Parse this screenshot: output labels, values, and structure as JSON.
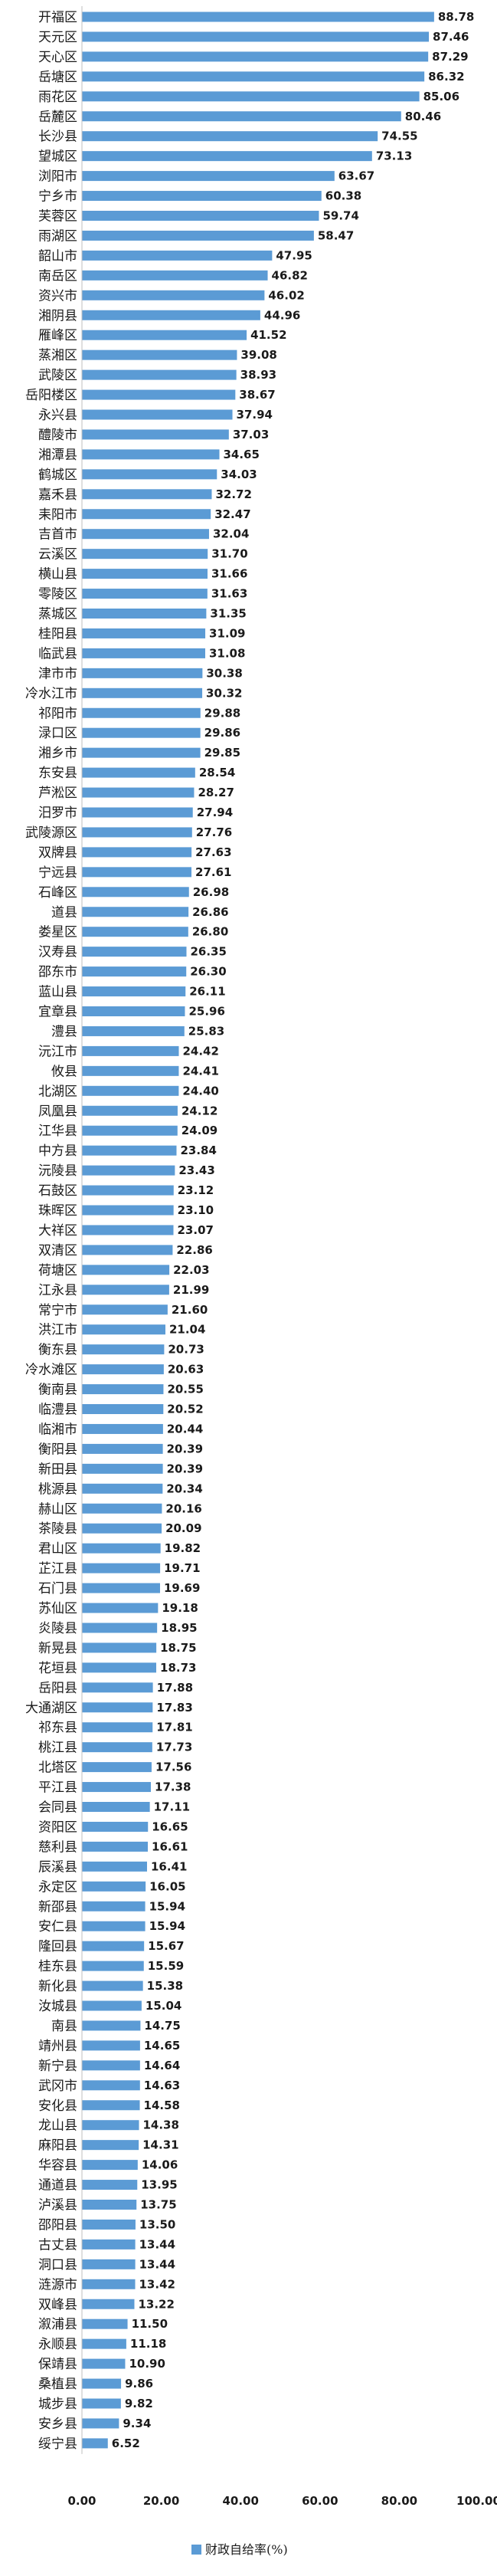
{
  "chart_data": {
    "type": "bar",
    "orientation": "horizontal",
    "categories": [
      "开福区",
      "天元区",
      "天心区",
      "岳塘区",
      "雨花区",
      "岳麓区",
      "长沙县",
      "望城区",
      "浏阳市",
      "宁乡市",
      "芙蓉区",
      "雨湖区",
      "韶山市",
      "南岳区",
      "资兴市",
      "湘阴县",
      "雁峰区",
      "蒸湘区",
      "武陵区",
      "岳阳楼区",
      "永兴县",
      "醴陵市",
      "湘潭县",
      "鹤城区",
      "嘉禾县",
      "耒阳市",
      "吉首市",
      "云溪区",
      "横山县",
      "零陵区",
      "蒸城区",
      "桂阳县",
      "临武县",
      "津市市",
      "冷水江市",
      "祁阳市",
      "渌口区",
      "湘乡市",
      "东安县",
      "芦淞区",
      "汨罗市",
      "武陵源区",
      "双牌县",
      "宁远县",
      "石峰区",
      "道县",
      "娄星区",
      "汉寿县",
      "邵东市",
      "蓝山县",
      "宜章县",
      "澧县",
      "沅江市",
      "攸县",
      "北湖区",
      "凤凰县",
      "江华县",
      "中方县",
      "沅陵县",
      "石鼓区",
      "珠晖区",
      "大祥区",
      "双清区",
      "荷塘区",
      "江永县",
      "常宁市",
      "洪江市",
      "衡东县",
      "冷水滩区",
      "衡南县",
      "临澧县",
      "临湘市",
      "衡阳县",
      "新田县",
      "桃源县",
      "赫山区",
      "茶陵县",
      "君山区",
      "芷江县",
      "石门县",
      "苏仙区",
      "炎陵县",
      "新晃县",
      "花垣县",
      "岳阳县",
      "大通湖区",
      "祁东县",
      "桃江县",
      "北塔区",
      "平江县",
      "会同县",
      "资阳区",
      "慈利县",
      "辰溪县",
      "永定区",
      "新邵县",
      "安仁县",
      "隆回县",
      "桂东县",
      "新化县",
      "汝城县",
      "南县",
      "靖州县",
      "新宁县",
      "武冈市",
      "安化县",
      "龙山县",
      "麻阳县",
      "华容县",
      "通道县",
      "泸溪县",
      "邵阳县",
      "古丈县",
      "洞口县",
      "涟源市",
      "双峰县",
      "溆浦县",
      "永顺县",
      "保靖县",
      "桑植县",
      "城步县",
      "安乡县",
      "绥宁县"
    ],
    "values": [
      88.78,
      87.46,
      87.29,
      86.32,
      85.06,
      80.46,
      74.55,
      73.13,
      63.67,
      60.38,
      59.74,
      58.47,
      47.95,
      46.82,
      46.02,
      44.96,
      41.52,
      39.08,
      38.93,
      38.67,
      37.94,
      37.03,
      34.65,
      34.03,
      32.72,
      32.47,
      32.04,
      31.7,
      31.66,
      31.63,
      31.35,
      31.09,
      31.08,
      30.38,
      30.32,
      29.88,
      29.86,
      29.85,
      28.54,
      28.27,
      27.94,
      27.76,
      27.63,
      27.61,
      26.98,
      26.86,
      26.8,
      26.35,
      26.3,
      26.11,
      25.96,
      25.83,
      24.42,
      24.41,
      24.4,
      24.12,
      24.09,
      23.84,
      23.43,
      23.12,
      23.1,
      23.07,
      22.86,
      22.03,
      21.99,
      21.6,
      21.04,
      20.73,
      20.63,
      20.55,
      20.52,
      20.44,
      20.39,
      20.39,
      20.34,
      20.16,
      20.09,
      19.82,
      19.71,
      19.69,
      19.18,
      18.95,
      18.75,
      18.73,
      17.88,
      17.83,
      17.81,
      17.73,
      17.56,
      17.38,
      17.11,
      16.65,
      16.61,
      16.41,
      16.05,
      15.94,
      15.94,
      15.67,
      15.59,
      15.38,
      15.04,
      14.75,
      14.65,
      14.64,
      14.63,
      14.58,
      14.38,
      14.31,
      14.06,
      13.95,
      13.75,
      13.5,
      13.44,
      13.44,
      13.42,
      13.22,
      11.5,
      11.18,
      10.9,
      9.86,
      9.82,
      9.34,
      6.52
    ],
    "series_name": "财政自给率(%)",
    "xlim": [
      0,
      100
    ],
    "ticks": [
      "0.00",
      "20.00",
      "40.00",
      "60.00",
      "80.00",
      "100.00"
    ],
    "tick_values": [
      0,
      20,
      40,
      60,
      80,
      100
    ],
    "bar_color": "#5b9bd5",
    "legend": "bottom",
    "grid": false
  }
}
